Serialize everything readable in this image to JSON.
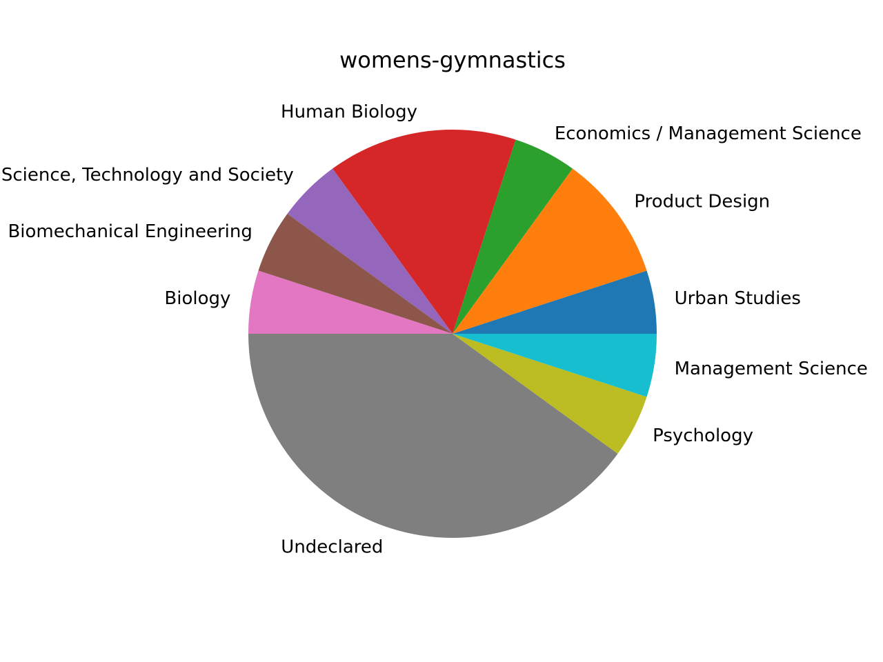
{
  "chart_data": {
    "type": "pie",
    "title": "womens-gymnastics",
    "start_angle_deg": 0,
    "counterclockwise": true,
    "slices": [
      {
        "label": "Urban Studies",
        "value": 1,
        "color": "#1f77b4"
      },
      {
        "label": "Product Design",
        "value": 2,
        "color": "#ff7f0e"
      },
      {
        "label": "Economics / Management Science",
        "value": 1,
        "color": "#2ca02c"
      },
      {
        "label": "Human Biology",
        "value": 3,
        "color": "#d62728"
      },
      {
        "label": "Science, Technology and Society",
        "value": 1,
        "color": "#9467bd"
      },
      {
        "label": "Biomechanical Engineering",
        "value": 1,
        "color": "#8c564b"
      },
      {
        "label": "Biology",
        "value": 1,
        "color": "#e377c2"
      },
      {
        "label": "Undeclared",
        "value": 8,
        "color": "#7f7f7f"
      },
      {
        "label": "Psychology",
        "value": 1,
        "color": "#bcbd22"
      },
      {
        "label": "Management Science",
        "value": 1,
        "color": "#17becf"
      }
    ]
  }
}
